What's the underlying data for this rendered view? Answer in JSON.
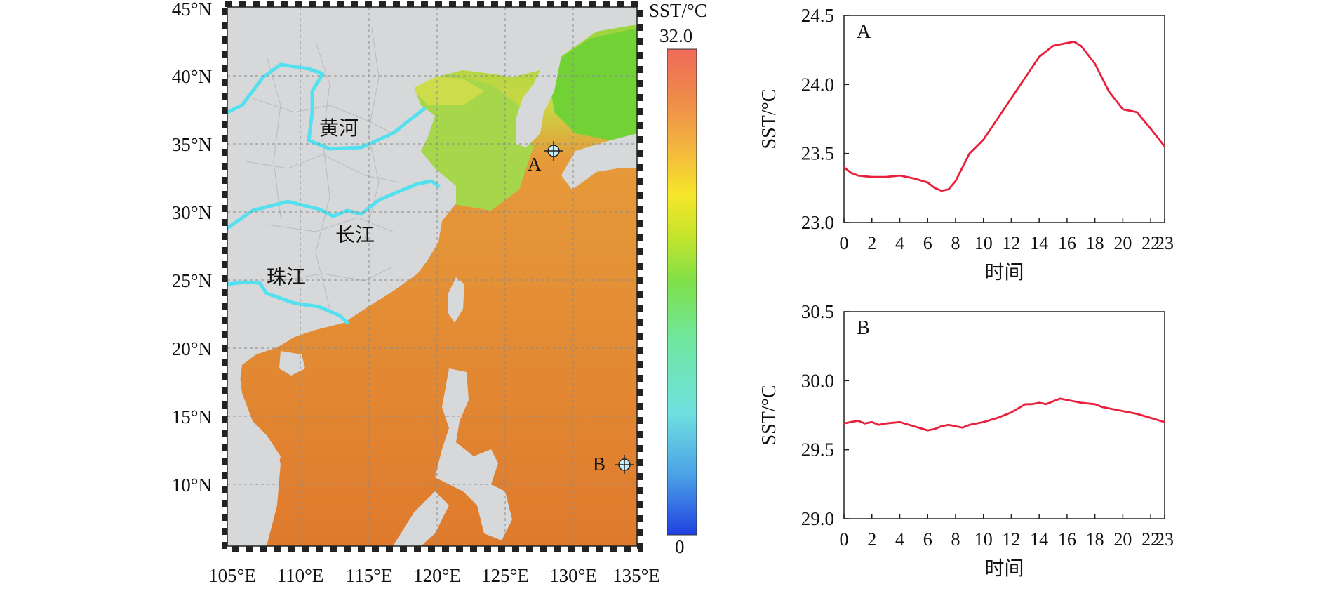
{
  "map": {
    "lat_labels": [
      "45°N",
      "40°N",
      "35°N",
      "30°N",
      "25°N",
      "20°N",
      "15°N",
      "10°N"
    ],
    "lon_labels": [
      "105°E",
      "110°E",
      "115°E",
      "120°E",
      "125°E",
      "130°E",
      "135°E"
    ],
    "rivers": {
      "yellow": "黄河",
      "yangtze": "长江",
      "pearl": "珠江"
    },
    "stations": {
      "a": "A",
      "b": "B"
    },
    "colorbar": {
      "title": "SST/°C",
      "max": "32.0",
      "min": "0"
    }
  },
  "colors": {
    "land": "#d6d8d9",
    "sea_warm": "#e07a2e",
    "river": "#55e0f0",
    "line": "#e8203c"
  },
  "chart_data": [
    {
      "type": "line",
      "panel_label": "A",
      "xlabel": "时间",
      "ylabel": "SST/°C",
      "xlim": [
        0,
        23
      ],
      "ylim": [
        23.0,
        24.5
      ],
      "xticks": [
        "0",
        "2",
        "4",
        "6",
        "8",
        "10",
        "12",
        "14",
        "16",
        "18",
        "20",
        "22",
        "23"
      ],
      "yticks": [
        "23.0",
        "23.5",
        "24.0",
        "24.5"
      ],
      "x": [
        0,
        0.5,
        1,
        2,
        3,
        4,
        5,
        6,
        6.5,
        7,
        7.5,
        8,
        9,
        10,
        11,
        12,
        13,
        14,
        15,
        16,
        16.5,
        17,
        18,
        19,
        20,
        21,
        22,
        23
      ],
      "values": [
        23.4,
        23.36,
        23.34,
        23.33,
        23.33,
        23.34,
        23.32,
        23.29,
        23.25,
        23.23,
        23.24,
        23.3,
        23.5,
        23.6,
        23.75,
        23.9,
        24.05,
        24.2,
        24.28,
        24.3,
        24.31,
        24.28,
        24.15,
        23.95,
        23.82,
        23.8,
        23.68,
        23.55
      ]
    },
    {
      "type": "line",
      "panel_label": "B",
      "xlabel": "时间",
      "ylabel": "SST/°C",
      "xlim": [
        0,
        23
      ],
      "ylim": [
        29.0,
        30.5
      ],
      "xticks": [
        "0",
        "2",
        "4",
        "6",
        "8",
        "10",
        "12",
        "14",
        "16",
        "18",
        "20",
        "22",
        "23"
      ],
      "yticks": [
        "29.0",
        "29.5",
        "30.0",
        "30.5"
      ],
      "x": [
        0,
        0.5,
        1,
        1.5,
        2,
        2.5,
        3,
        4,
        5,
        6,
        6.5,
        7,
        7.5,
        8,
        8.5,
        9,
        10,
        11,
        12,
        13,
        13.5,
        14,
        14.5,
        15,
        15.5,
        16,
        16.5,
        17,
        18,
        18.5,
        19,
        20,
        21,
        22,
        23
      ],
      "values": [
        29.69,
        29.7,
        29.71,
        29.69,
        29.7,
        29.68,
        29.69,
        29.7,
        29.67,
        29.64,
        29.65,
        29.67,
        29.68,
        29.67,
        29.66,
        29.68,
        29.7,
        29.73,
        29.77,
        29.83,
        29.83,
        29.84,
        29.83,
        29.85,
        29.87,
        29.86,
        29.85,
        29.84,
        29.83,
        29.81,
        29.8,
        29.78,
        29.76,
        29.73,
        29.7
      ]
    }
  ]
}
